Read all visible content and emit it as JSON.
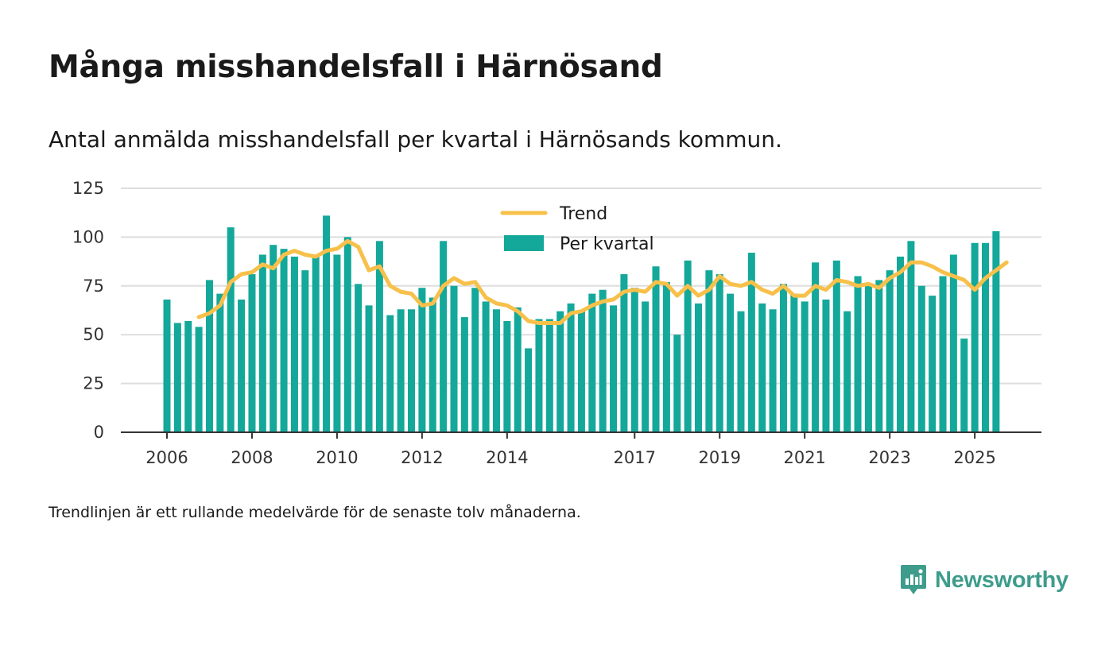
{
  "title": "Många misshandelsfall i Härnösand",
  "subtitle": "Antal anmälda misshandelsfall per kvartal i Härnösands kommun.",
  "footnote": "Trendlinjen är ett rullande medelvärde för de senaste tolv månaderna.",
  "brand": {
    "name": "Newsworthy",
    "icon": "newsworthy-logo-icon"
  },
  "colors": {
    "bars": "#13a89a",
    "trend": "#f7c04a",
    "grid": "#dddddd",
    "axis": "#333333",
    "brand": "#3e9c8c"
  },
  "chart_data": {
    "type": "bar",
    "title": "Många misshandelsfall i Härnösand",
    "xlabel": "",
    "ylabel": "",
    "ylim": [
      0,
      125
    ],
    "yticks": [
      0,
      25,
      50,
      75,
      100,
      125
    ],
    "xticks": [
      {
        "label": "2006",
        "index": 0
      },
      {
        "label": "2008",
        "index": 8
      },
      {
        "label": "2010",
        "index": 16
      },
      {
        "label": "2012",
        "index": 24
      },
      {
        "label": "2014",
        "index": 32
      },
      {
        "label": "2017",
        "index": 44
      },
      {
        "label": "2019",
        "index": 52
      },
      {
        "label": "2021",
        "index": 60
      },
      {
        "label": "2023",
        "index": 68
      },
      {
        "label": "2025",
        "index": 76
      }
    ],
    "legend": {
      "position": "top-center",
      "trend_label": "Trend",
      "bars_label": "Per kvartal"
    },
    "series": [
      {
        "name": "Per kvartal",
        "type": "bar",
        "values": [
          68,
          56,
          57,
          54,
          78,
          71,
          105,
          68,
          81,
          91,
          96,
          94,
          90,
          83,
          90,
          111,
          91,
          100,
          76,
          65,
          98,
          60,
          63,
          63,
          74,
          69,
          98,
          75,
          59,
          74,
          67,
          63,
          57,
          64,
          43,
          58,
          58,
          62,
          66,
          62,
          71,
          73,
          65,
          81,
          74,
          67,
          85,
          77,
          50,
          88,
          66,
          83,
          81,
          71,
          62,
          92,
          66,
          63,
          76,
          71,
          67,
          87,
          68,
          88,
          62,
          80,
          75,
          78,
          83,
          90,
          98,
          75,
          70,
          80,
          91,
          48,
          97,
          97,
          103
        ]
      },
      {
        "name": "Trend",
        "type": "line",
        "start_index": 3,
        "values": [
          59,
          61,
          65,
          77,
          81,
          82,
          86,
          84,
          91,
          93,
          91,
          90,
          93,
          94,
          98,
          95,
          83,
          85,
          75,
          72,
          71,
          65,
          66,
          75,
          79,
          76,
          77,
          69,
          66,
          65,
          62,
          57,
          56,
          56,
          56,
          61,
          62,
          65,
          67,
          68,
          72,
          73,
          72,
          77,
          76,
          70,
          75,
          70,
          73,
          80,
          76,
          75,
          77,
          73,
          71,
          75,
          70,
          70,
          75,
          73,
          78,
          77,
          75,
          76,
          74,
          79,
          82,
          87,
          87,
          85,
          82,
          80,
          78,
          73,
          79,
          83,
          87
        ]
      }
    ]
  }
}
